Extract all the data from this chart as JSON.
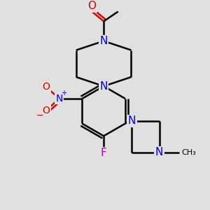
{
  "background_color": "#e0e0e0",
  "bond_color": "#000000",
  "N_color": "#0000ee",
  "O_color": "#dd0000",
  "F_color": "#bb00bb",
  "bond_width": 1.8,
  "font_size": 10,
  "figsize": [
    3.0,
    3.0
  ],
  "dpi": 100,
  "xlim": [
    0,
    300
  ],
  "ylim": [
    0,
    300
  ]
}
